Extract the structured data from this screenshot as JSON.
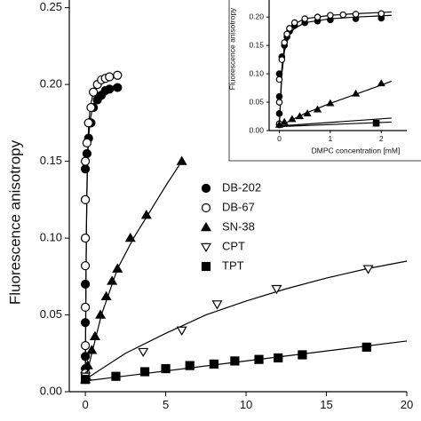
{
  "chart_data": [
    {
      "type": "scatter",
      "ylabel": "Fluorescence anisotropy",
      "legend": true,
      "legend_location": "center",
      "xlim": [
        -1,
        20
      ],
      "xticks": [
        0,
        5,
        10,
        15,
        20
      ],
      "ylim": [
        0,
        0.255
      ],
      "yticks": [
        {
          "value": 0,
          "label": "0.00"
        },
        {
          "value": 0.05,
          "label": "0.05"
        },
        {
          "value": 0.1,
          "label": "0.10"
        },
        {
          "value": 0.15,
          "label": "0.15"
        },
        {
          "value": 0.2,
          "label": "0.20"
        },
        {
          "value": 0.25,
          "label": "0.25"
        }
      ],
      "series": [
        {
          "name": "DB-202",
          "marker": "filled-circle",
          "color": "#000000",
          "x": [
            0,
            0,
            0,
            0,
            0,
            0,
            0,
            0,
            0.1,
            0.2,
            0.35,
            0.5,
            0.75,
            1,
            1.25,
            1.5,
            2
          ],
          "values": [
            0.008,
            0.015,
            0.023,
            0.045,
            0.07,
            0.1,
            0.125,
            0.145,
            0.155,
            0.165,
            0.175,
            0.185,
            0.19,
            0.193,
            0.196,
            0.197,
            0.198
          ],
          "fit": {
            "x": [
              0,
              0.03,
              0.06,
              0.1,
              0.15,
              0.2,
              0.3,
              0.5,
              0.75,
              1,
              1.5,
              2
            ],
            "values": [
              0.007,
              0.06,
              0.1,
              0.13,
              0.152,
              0.165,
              0.177,
              0.187,
              0.192,
              0.195,
              0.198,
              0.2
            ]
          }
        },
        {
          "name": "DB-67",
          "marker": "open-circle",
          "color": "#000000",
          "x": [
            0,
            0,
            0,
            0,
            0,
            0,
            0,
            0.1,
            0.2,
            0.35,
            0.5,
            0.75,
            1,
            1.25,
            1.5,
            2
          ],
          "values": [
            0.012,
            0.03,
            0.055,
            0.082,
            0.1,
            0.125,
            0.15,
            0.162,
            0.175,
            0.185,
            0.195,
            0.2,
            0.203,
            0.204,
            0.205,
            0.206
          ],
          "fit": {
            "x": [
              0,
              0.03,
              0.06,
              0.1,
              0.15,
              0.2,
              0.3,
              0.5,
              0.75,
              1,
              1.5,
              2
            ],
            "values": [
              0.007,
              0.06,
              0.1,
              0.135,
              0.158,
              0.172,
              0.185,
              0.195,
              0.2,
              0.203,
              0.205,
              0.207
            ]
          }
        },
        {
          "name": "SN-38",
          "marker": "filled-triangle",
          "color": "#000000",
          "x": [
            0,
            0.05,
            0.15,
            0.4,
            0.6,
            0.94,
            1.3,
            1.66,
            2.0,
            2.8,
            3.8,
            6.0
          ],
          "values": [
            0.008,
            0.01,
            0.017,
            0.027,
            0.036,
            0.05,
            0.062,
            0.072,
            0.08,
            0.1,
            0.115,
            0.15
          ],
          "fit": {
            "x": [
              0,
              1,
              2,
              3,
              4,
              5,
              6
            ],
            "values": [
              0.008,
              0.05,
              0.08,
              0.1,
              0.117,
              0.134,
              0.15
            ]
          }
        },
        {
          "name": "CPT",
          "marker": "open-down-triangle",
          "color": "#000000",
          "x": [
            0,
            3.6,
            6,
            8.2,
            11.9,
            17.6
          ],
          "values": [
            0.01,
            0.026,
            0.04,
            0.057,
            0.067,
            0.08
          ],
          "fit": {
            "x": [
              0,
              2.5,
              5,
              7.5,
              10,
              12.5,
              15,
              17.5,
              20
            ],
            "values": [
              0.008,
              0.025,
              0.038,
              0.05,
              0.059,
              0.067,
              0.074,
              0.08,
              0.085
            ]
          }
        },
        {
          "name": "TPT",
          "marker": "filled-square",
          "color": "#000000",
          "x": [
            0,
            1.9,
            3.7,
            5.0,
            6.5,
            8,
            9.3,
            10.8,
            12,
            13.5,
            17.5
          ],
          "values": [
            0.008,
            0.01,
            0.013,
            0.015,
            0.017,
            0.018,
            0.02,
            0.021,
            0.022,
            0.024,
            0.029
          ],
          "fit": {
            "x": [
              0,
              20
            ],
            "values": [
              0.007,
              0.033
            ]
          }
        }
      ]
    },
    {
      "type": "scatter",
      "ylabel": "Fluorescence anisotropy",
      "xlabel": "DMPC concentration [mM]",
      "legend": false,
      "xlim": [
        -0.2,
        2.5
      ],
      "xticks": [
        0,
        1,
        2
      ],
      "ylim": [
        0,
        0.23
      ],
      "yticks": [
        {
          "value": 0,
          "label": "0.00"
        },
        {
          "value": 0.05,
          "label": "0.05"
        },
        {
          "value": 0.1,
          "label": "0.10"
        },
        {
          "value": 0.15,
          "label": "0.15"
        },
        {
          "value": 0.2,
          "label": "0.20"
        }
      ],
      "series": [
        {
          "marker": "filled-circle",
          "color": "#000000",
          "x": [
            0,
            0,
            0,
            0,
            0.05,
            0.1,
            0.15,
            0.2,
            0.3,
            0.5,
            0.75,
            1,
            1.5,
            2
          ],
          "values": [
            0.01,
            0.03,
            0.06,
            0.1,
            0.13,
            0.15,
            0.165,
            0.175,
            0.185,
            0.19,
            0.193,
            0.195,
            0.197,
            0.198
          ],
          "fit": {
            "x": [
              0,
              0.05,
              0.1,
              0.2,
              0.3,
              0.5,
              1,
              1.5,
              2,
              2.2
            ],
            "values": [
              0.007,
              0.1,
              0.14,
              0.17,
              0.18,
              0.19,
              0.197,
              0.2,
              0.202,
              0.203
            ]
          }
        },
        {
          "marker": "open-circle",
          "color": "#000000",
          "x": [
            0,
            0,
            0,
            0.05,
            0.1,
            0.15,
            0.2,
            0.3,
            0.5,
            0.75,
            1,
            1.25,
            1.5,
            2
          ],
          "values": [
            0.012,
            0.05,
            0.09,
            0.125,
            0.155,
            0.17,
            0.18,
            0.19,
            0.197,
            0.2,
            0.203,
            0.204,
            0.205,
            0.206
          ],
          "fit": {
            "x": [
              0,
              0.05,
              0.1,
              0.2,
              0.3,
              0.5,
              1,
              1.5,
              2,
              2.2
            ],
            "values": [
              0.007,
              0.11,
              0.15,
              0.178,
              0.188,
              0.197,
              0.203,
              0.206,
              0.208,
              0.209
            ]
          }
        },
        {
          "marker": "filled-triangle",
          "color": "#000000",
          "x": [
            0,
            0.1,
            0.25,
            0.4,
            0.55,
            0.75,
            1,
            1.5,
            2
          ],
          "values": [
            0.01,
            0.015,
            0.02,
            0.025,
            0.03,
            0.037,
            0.048,
            0.065,
            0.083
          ],
          "fit": {
            "x": [
              0,
              0.5,
              1,
              1.5,
              2,
              2.2
            ],
            "values": [
              0.008,
              0.03,
              0.048,
              0.064,
              0.08,
              0.087
            ]
          }
        },
        {
          "marker": "open-down-triangle",
          "color": "#000000",
          "fit": {
            "x": [
              0,
              2.2
            ],
            "values": [
              0.008,
              0.022
            ]
          }
        },
        {
          "marker": "filled-square",
          "color": "#000000",
          "x": [
            1.9
          ],
          "values": [
            0.013
          ],
          "fit": {
            "x": [
              0,
              2.2
            ],
            "values": [
              0.007,
              0.015
            ]
          }
        }
      ]
    }
  ]
}
